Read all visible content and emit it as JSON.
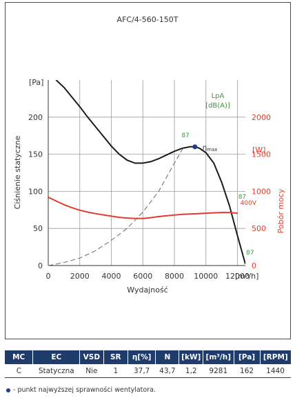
{
  "chart_data": {
    "type": "line",
    "title": "AFC/4-560-150T",
    "xlabel": "Wydajność",
    "x_unit": "[m³/h]",
    "ylabel": "Ciśnienie statyczne",
    "y_unit": "[Pa]",
    "y2label": "Pobór mocy",
    "y2_unit": "[W]",
    "sound_label_1": "LpA",
    "sound_label_2": "[dB(A)]",
    "xlim": [
      0,
      12500
    ],
    "ylim": [
      0,
      250
    ],
    "y2lim": [
      0,
      2500
    ],
    "x_ticks": [
      0,
      2000,
      4000,
      6000,
      8000,
      10000,
      12000
    ],
    "x_tick_labels": [
      "0",
      "2000",
      "4000",
      "6000",
      "8000",
      "10000",
      "12000"
    ],
    "y_ticks": [
      0,
      50,
      100,
      150,
      200
    ],
    "y_tick_labels": [
      "0",
      "50",
      "100",
      "150",
      "200"
    ],
    "y2_ticks": [
      0,
      500,
      1000,
      1500,
      2000
    ],
    "y2_tick_labels": [
      "0",
      "500",
      "1000",
      "1500",
      "2000"
    ],
    "grid": true,
    "series": [
      {
        "name": "",
        "axis": "left",
        "color": "#1a1a1a",
        "style": "solid",
        "x": [
          500,
          1000,
          1500,
          2000,
          2500,
          3000,
          3500,
          4000,
          4500,
          5000,
          5500,
          6000,
          6500,
          7000,
          7500,
          8000,
          8500,
          9000,
          9300,
          9600,
          10000,
          10500,
          11000,
          11500,
          12000,
          12500
        ],
        "y": [
          250,
          240,
          227,
          214,
          200,
          187,
          174,
          161,
          150,
          142,
          138,
          138,
          140,
          144,
          149,
          154,
          158,
          160,
          160,
          158,
          152,
          138,
          112,
          80,
          40,
          2
        ]
      },
      {
        "name": "400V",
        "axis": "right",
        "color": "#e33a2a",
        "style": "solid",
        "x": [
          0,
          500,
          1000,
          1500,
          2000,
          2500,
          3000,
          3500,
          4000,
          4500,
          5000,
          5500,
          6000,
          6500,
          7000,
          7500,
          8000,
          8500,
          9000,
          9500,
          10000,
          10500,
          11000,
          11500,
          12000
        ],
        "y": [
          920,
          870,
          820,
          780,
          745,
          720,
          700,
          682,
          665,
          650,
          640,
          635,
          635,
          645,
          660,
          670,
          680,
          690,
          695,
          700,
          705,
          710,
          715,
          715,
          705
        ]
      },
      {
        "name": "",
        "axis": "left",
        "color": "#666666",
        "style": "dashed",
        "x": [
          0,
          1000,
          2000,
          3000,
          4000,
          5000,
          6000,
          7000,
          8000,
          8600
        ],
        "y": [
          0,
          4,
          10,
          20,
          34,
          50,
          72,
          100,
          138,
          160
        ]
      }
    ],
    "points": [
      {
        "label": "η max",
        "x": 9300,
        "y": 160,
        "color": "#1f3c8c"
      }
    ],
    "annotations": [
      {
        "text": "87",
        "x": 8700,
        "y": 173,
        "color": "#3a9a3a"
      },
      {
        "text": "87",
        "x": 12300,
        "y": 90,
        "color": "#3a9a3a"
      },
      {
        "text": "87",
        "x": 12800,
        "y": 15,
        "color": "#3a9a3a"
      }
    ]
  },
  "table": {
    "headers": [
      "MC",
      "EC",
      "VSD",
      "SR",
      "η[%]",
      "N",
      "[kW]",
      "[m³/h]",
      "[Pa]",
      "[RPM]"
    ],
    "rows": [
      [
        "C",
        "Statyczna",
        "Nie",
        "1",
        "37,7",
        "43,7",
        "1,2",
        "9281",
        "162",
        "1440"
      ]
    ]
  },
  "footnote": "- punkt najwyższej sprawności wentylatora."
}
